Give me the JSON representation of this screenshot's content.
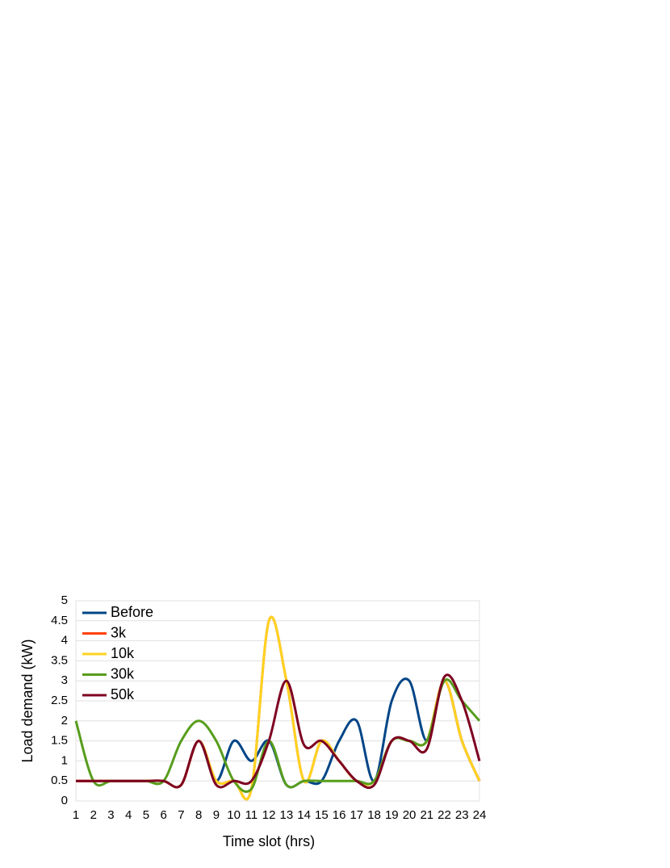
{
  "chart_data": {
    "type": "line",
    "x_label": "Time slot (hrs)",
    "y_label": "Load demand (kW)",
    "categories": [
      "1",
      "2",
      "3",
      "4",
      "5",
      "6",
      "7",
      "8",
      "9",
      "10",
      "11",
      "12",
      "13",
      "14",
      "15",
      "16",
      "17",
      "18",
      "19",
      "20",
      "21",
      "22",
      "23",
      "24"
    ],
    "ylim": [
      0,
      5
    ],
    "yticks": [
      0,
      0.5,
      1,
      1.5,
      2,
      2.5,
      3,
      3.5,
      4,
      4.5,
      5
    ],
    "grid": true,
    "legend": "top-left",
    "smooth": true,
    "series": [
      {
        "name": "Before",
        "color": "#004586",
        "values": [
          0.5,
          0.5,
          0.5,
          0.5,
          0.5,
          0.5,
          0.4,
          1.5,
          0.5,
          1.5,
          1.0,
          1.5,
          0.4,
          0.5,
          0.5,
          1.5,
          2.0,
          0.5,
          2.5,
          3.0,
          1.5,
          3.0,
          1.5,
          0.5
        ]
      },
      {
        "name": "3k",
        "color": "#ff420e",
        "values": [
          0.5,
          0.5,
          0.5,
          0.5,
          0.5,
          0.5,
          0.4,
          1.5,
          0.5,
          0.5,
          0.3,
          4.5,
          3.0,
          0.5,
          1.5,
          1.0,
          0.5,
          0.5,
          1.5,
          1.5,
          1.5,
          3.0,
          1.5,
          0.5
        ]
      },
      {
        "name": "10k",
        "color": "#ffd320",
        "values": [
          0.5,
          0.5,
          0.5,
          0.5,
          0.5,
          0.5,
          0.4,
          1.5,
          0.5,
          0.5,
          0.3,
          4.5,
          3.0,
          0.5,
          1.5,
          1.0,
          0.5,
          0.5,
          1.5,
          1.5,
          1.5,
          3.0,
          1.5,
          0.5
        ]
      },
      {
        "name": "30k",
        "color": "#579d1c",
        "values": [
          2.0,
          0.5,
          0.5,
          0.5,
          0.5,
          0.5,
          1.5,
          2.0,
          1.5,
          0.5,
          0.3,
          1.5,
          0.4,
          0.5,
          0.5,
          0.5,
          0.5,
          0.5,
          1.5,
          1.5,
          1.5,
          3.0,
          2.5,
          2.0
        ]
      },
      {
        "name": "50k",
        "color": "#7e0021",
        "values": [
          0.5,
          0.5,
          0.5,
          0.5,
          0.5,
          0.5,
          0.4,
          1.5,
          0.4,
          0.5,
          0.5,
          1.5,
          3.0,
          1.4,
          1.5,
          1.0,
          0.5,
          0.4,
          1.5,
          1.5,
          1.3,
          3.1,
          2.5,
          1.0
        ]
      }
    ]
  }
}
